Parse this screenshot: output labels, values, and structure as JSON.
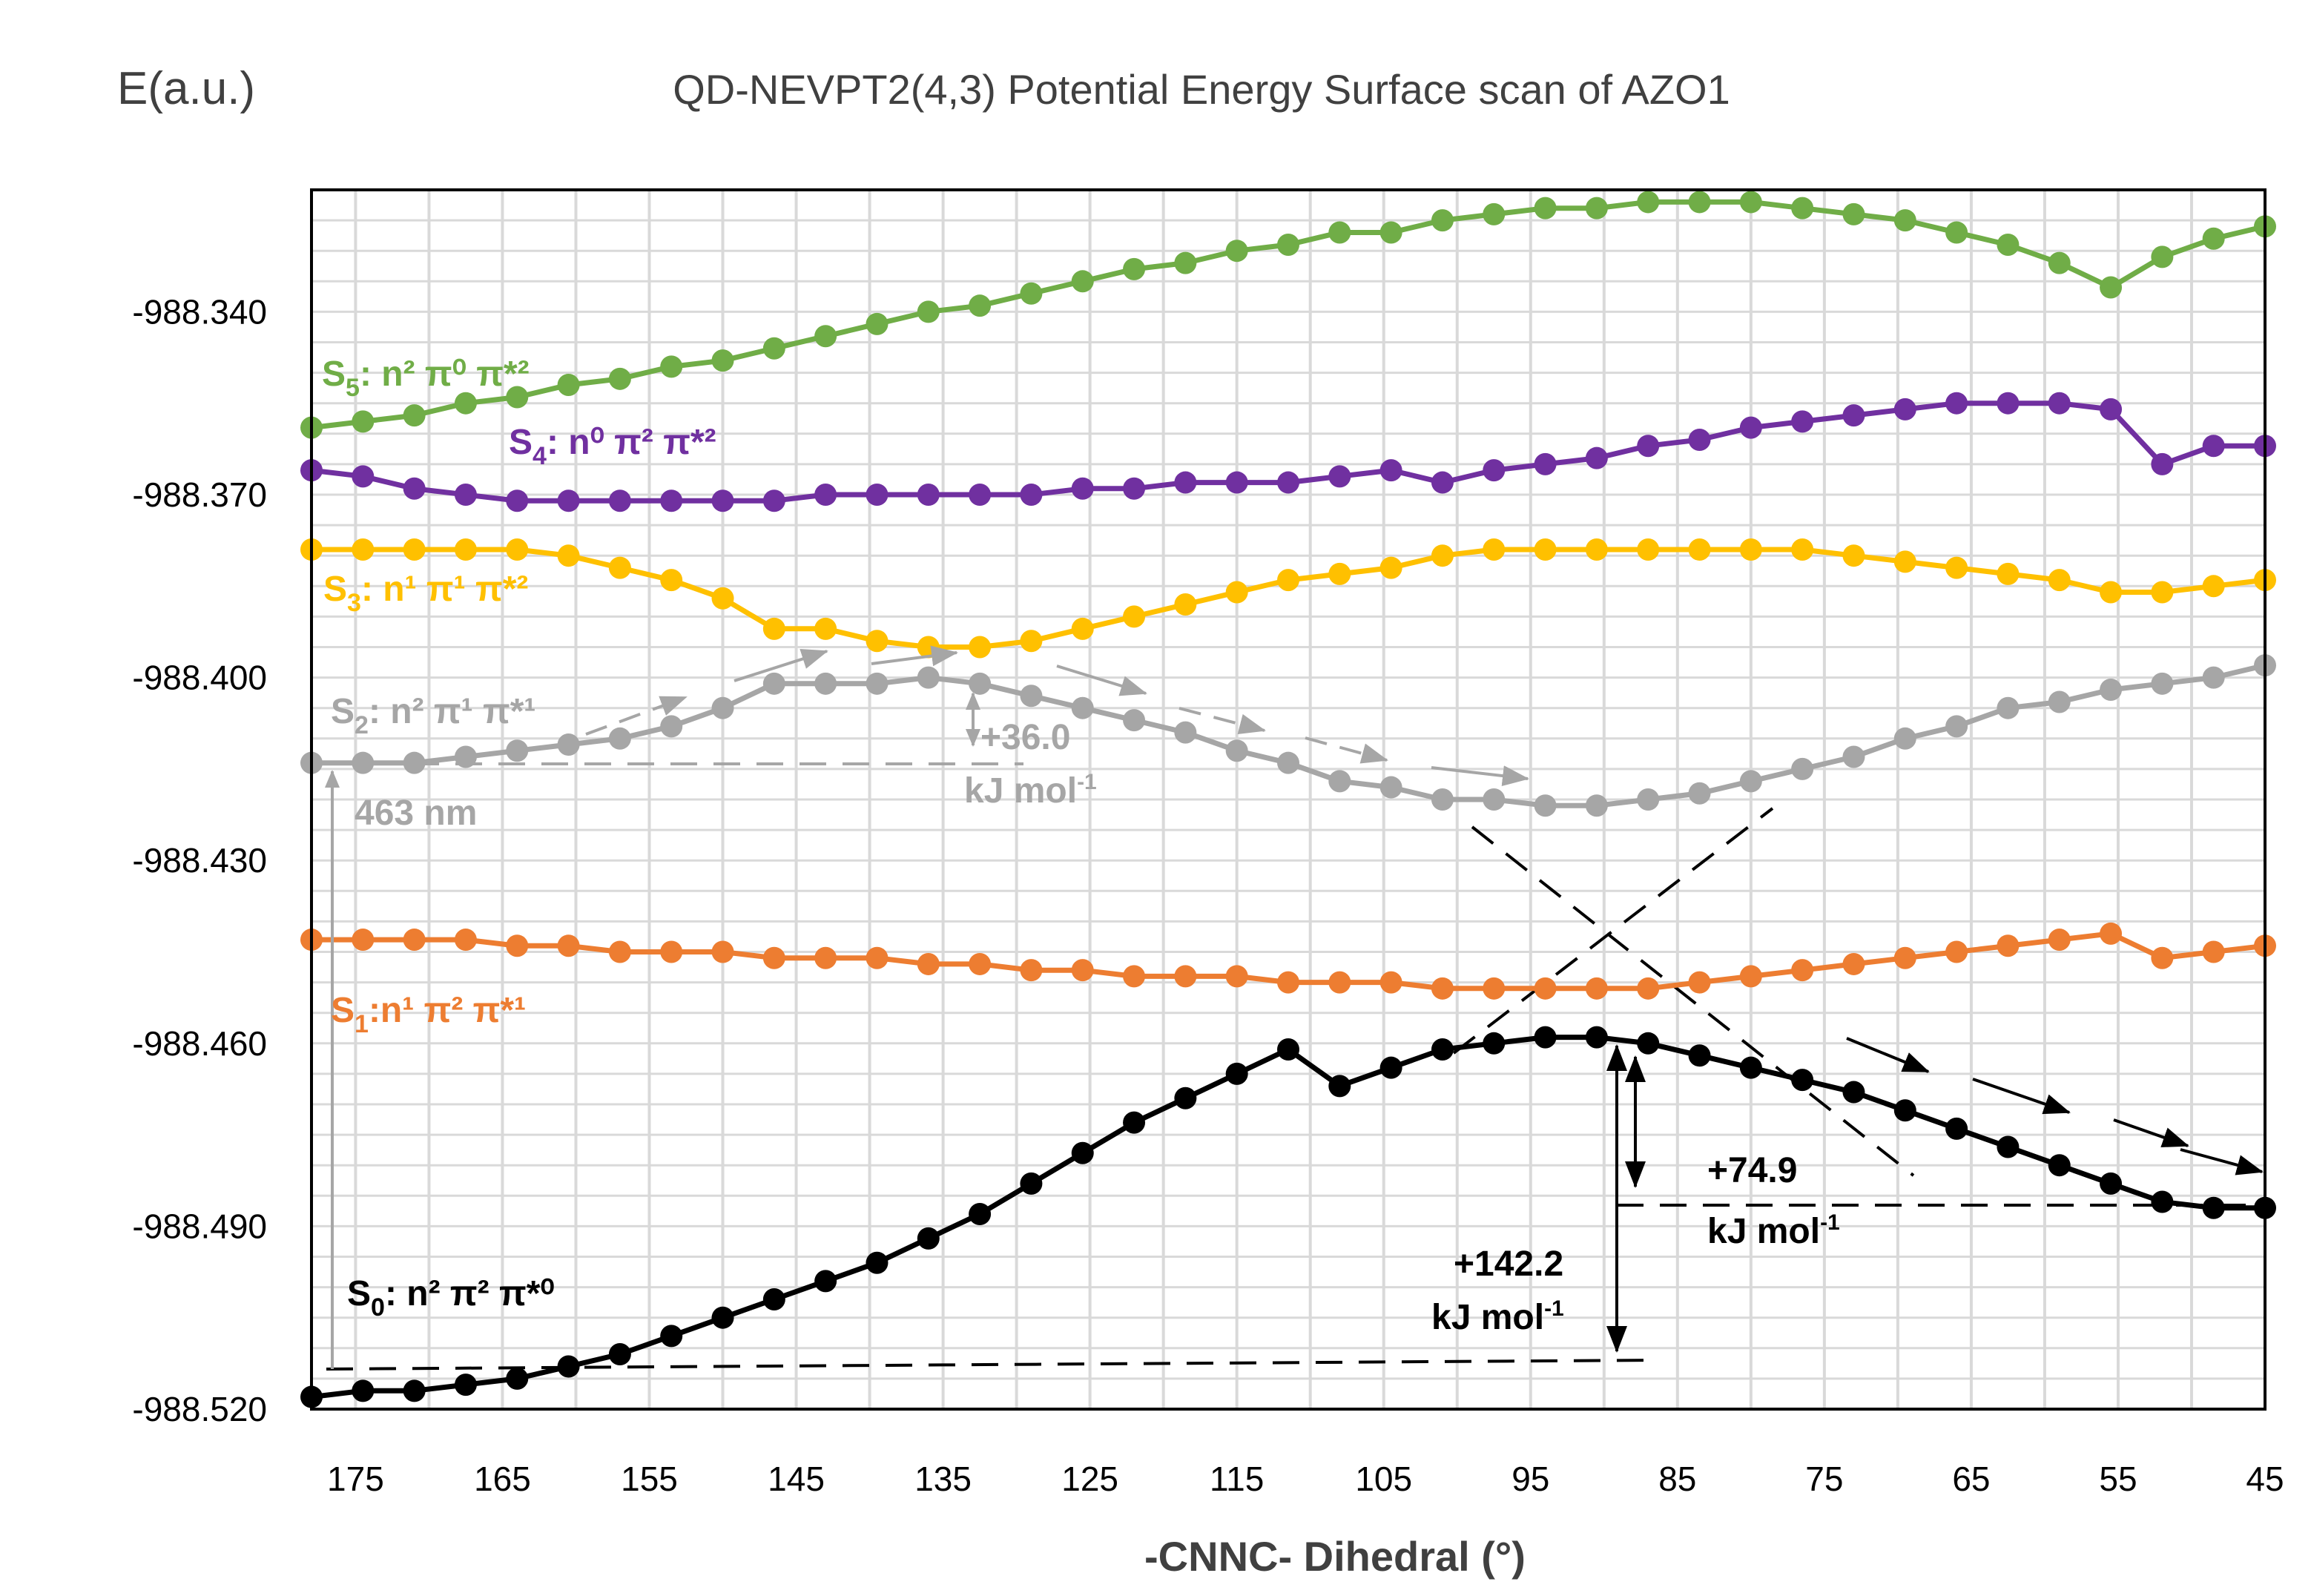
{
  "chart_data": {
    "type": "line",
    "title": "QD-NEVPT2(4,3) Potential Energy Surface scan of AZO1",
    "ylabel": "E(a.u.)",
    "xlabel": "-CNNC- Dihedral (°)",
    "xlim": [
      178,
      45
    ],
    "ylim": [
      -988.52,
      -988.32
    ],
    "x_ticks": [
      175,
      165,
      155,
      145,
      135,
      125,
      115,
      105,
      95,
      85,
      75,
      65,
      55,
      45
    ],
    "y_ticks": [
      -988.34,
      -988.37,
      -988.4,
      -988.43,
      -988.46,
      -988.49,
      -988.52
    ],
    "y_tick_labels": [
      "-988.340",
      "-988.370",
      "-988.400",
      "-988.430",
      "-988.460",
      "-988.490",
      "-988.520"
    ],
    "grid": true,
    "x": [
      178,
      174.5,
      171,
      167.5,
      164,
      160.5,
      157,
      153.5,
      150,
      146.5,
      143,
      139.5,
      136,
      132.5,
      129,
      125.5,
      122,
      118.5,
      115,
      111.5,
      108,
      104.5,
      101,
      97.5,
      94,
      90.5,
      87,
      83.5,
      80,
      76.5,
      73,
      69.5,
      66,
      62.5,
      59,
      55.5,
      52,
      48.5,
      45
    ],
    "series": [
      {
        "name": "S5",
        "color": "#70AD47",
        "label_main": "S",
        "label_sub": "5",
        "label_orbitals": ": n² π⁰ π*²",
        "values": [
          -988.359,
          -988.358,
          -988.357,
          -988.355,
          -988.354,
          -988.352,
          -988.351,
          -988.349,
          -988.348,
          -988.346,
          -988.344,
          -988.342,
          -988.34,
          -988.339,
          -988.337,
          -988.335,
          -988.333,
          -988.332,
          -988.33,
          -988.329,
          -988.327,
          -988.327,
          -988.325,
          -988.324,
          -988.323,
          -988.323,
          -988.322,
          -988.322,
          -988.322,
          -988.323,
          -988.324,
          -988.325,
          -988.327,
          -988.329,
          -988.332,
          -988.336,
          -988.331,
          -988.328,
          -988.326
        ]
      },
      {
        "name": "S4",
        "color": "#7030A0",
        "label_main": "S",
        "label_sub": "4",
        "label_orbitals": ": n⁰ π² π*²",
        "values": [
          -988.366,
          -988.367,
          -988.369,
          -988.37,
          -988.371,
          -988.371,
          -988.371,
          -988.371,
          -988.371,
          -988.371,
          -988.37,
          -988.37,
          -988.37,
          -988.37,
          -988.37,
          -988.369,
          -988.369,
          -988.368,
          -988.368,
          -988.368,
          -988.367,
          -988.366,
          -988.368,
          -988.366,
          -988.365,
          -988.364,
          -988.362,
          -988.361,
          -988.359,
          -988.358,
          -988.357,
          -988.356,
          -988.355,
          -988.355,
          -988.355,
          -988.356,
          -988.365,
          -988.362,
          -988.362
        ]
      },
      {
        "name": "S3",
        "color": "#FFC000",
        "label_main": "S",
        "label_sub": "3",
        "label_orbitals": ": n¹ π¹ π*²",
        "values": [
          -988.379,
          -988.379,
          -988.379,
          -988.379,
          -988.379,
          -988.38,
          -988.382,
          -988.384,
          -988.387,
          -988.392,
          -988.392,
          -988.394,
          -988.395,
          -988.395,
          -988.394,
          -988.392,
          -988.39,
          -988.388,
          -988.386,
          -988.384,
          -988.383,
          -988.382,
          -988.38,
          -988.379,
          -988.379,
          -988.379,
          -988.379,
          -988.379,
          -988.379,
          -988.379,
          -988.38,
          -988.381,
          -988.382,
          -988.383,
          -988.384,
          -988.386,
          -988.386,
          -988.385,
          -988.384
        ]
      },
      {
        "name": "S2",
        "color": "#A6A6A6",
        "label_main": "S",
        "label_sub": "2",
        "label_orbitals": ": n² π¹ π*¹",
        "values": [
          -988.414,
          -988.414,
          -988.414,
          -988.413,
          -988.412,
          -988.411,
          -988.41,
          -988.408,
          -988.405,
          -988.401,
          -988.401,
          -988.401,
          -988.4,
          -988.401,
          -988.403,
          -988.405,
          -988.407,
          -988.409,
          -988.412,
          -988.414,
          -988.417,
          -988.418,
          -988.42,
          -988.42,
          -988.421,
          -988.421,
          -988.42,
          -988.419,
          -988.417,
          -988.415,
          -988.413,
          -988.41,
          -988.408,
          -988.405,
          -988.404,
          -988.402,
          -988.401,
          -988.4,
          -988.398
        ]
      },
      {
        "name": "S1",
        "color": "#ED7D31",
        "label_main": "S",
        "label_sub": "1",
        "label_orbitals": ":n¹ π² π*¹",
        "values": [
          -988.443,
          -988.443,
          -988.443,
          -988.443,
          -988.444,
          -988.444,
          -988.445,
          -988.445,
          -988.445,
          -988.446,
          -988.446,
          -988.446,
          -988.447,
          -988.447,
          -988.448,
          -988.448,
          -988.449,
          -988.449,
          -988.449,
          -988.45,
          -988.45,
          -988.45,
          -988.451,
          -988.451,
          -988.451,
          -988.451,
          -988.451,
          -988.45,
          -988.449,
          -988.448,
          -988.447,
          -988.446,
          -988.445,
          -988.444,
          -988.443,
          -988.442,
          -988.446,
          -988.445,
          -988.444
        ]
      },
      {
        "name": "S0",
        "color": "#000000",
        "label_main": "S",
        "label_sub": "0",
        "label_orbitals": ": n² π² π*⁰",
        "values": [
          -988.518,
          -988.517,
          -988.517,
          -988.516,
          -988.515,
          -988.513,
          -988.511,
          -988.508,
          -988.505,
          -988.502,
          -988.499,
          -988.496,
          -988.492,
          -988.488,
          -988.483,
          -988.478,
          -988.473,
          -988.469,
          -988.465,
          -988.461,
          -988.467,
          -988.464,
          -988.461,
          -988.46,
          -988.459,
          -988.459,
          -988.46,
          -988.462,
          -988.464,
          -988.466,
          -988.468,
          -988.471,
          -988.474,
          -988.477,
          -988.48,
          -988.483,
          -988.486,
          -988.487,
          -988.487
        ]
      }
    ],
    "annotations": [
      {
        "text_line1": "+142.2",
        "text_line2": "kJ mol",
        "text_sup": "-1",
        "color": "#000000"
      },
      {
        "text_line1": "+74.9",
        "text_line2": "kJ mol",
        "text_sup": "-1",
        "color": "#000000"
      },
      {
        "text_line1": "+36.0",
        "text_line2": "kJ mol",
        "text_sup": "-1",
        "color": "#A6A6A6"
      },
      {
        "text_line1": "463 nm",
        "color": "#A6A6A6"
      }
    ]
  }
}
